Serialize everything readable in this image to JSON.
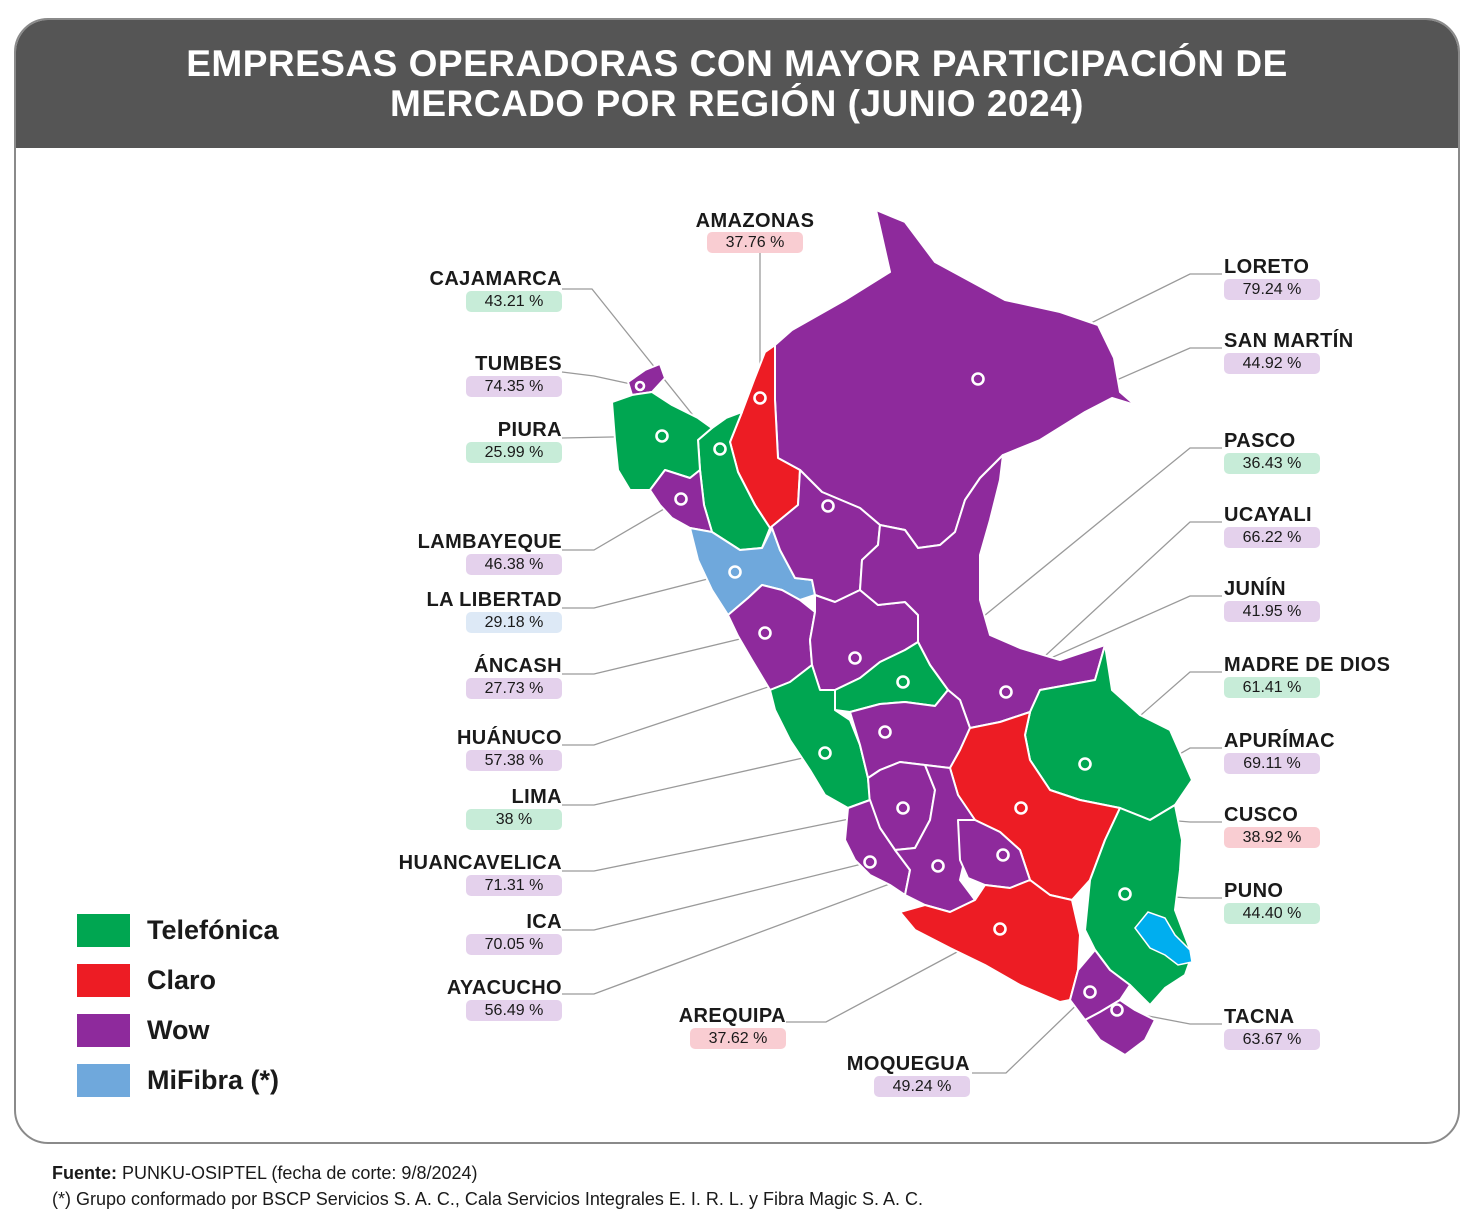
{
  "title": {
    "line1": "EMPRESAS OPERADORAS CON MAYOR PARTICIPACIÓN DE",
    "line2": "MERCADO POR REGIÓN (JUNIO 2024)"
  },
  "colors": {
    "telefonica": "#00a651",
    "claro": "#ed1c24",
    "wow": "#8e2a9c",
    "mifibra": "#6fa8dc",
    "lake": "#00aeef",
    "header": "#555555"
  },
  "legend": [
    {
      "label": "Telefónica",
      "color_key": "telefonica"
    },
    {
      "label": "Claro",
      "color_key": "claro"
    },
    {
      "label": "Wow",
      "color_key": "wow"
    },
    {
      "label": "MiFibra (*)",
      "color_key": "mifibra"
    }
  ],
  "regions": {
    "amazonas": {
      "name": "AMAZONAS",
      "value": "37.76 %",
      "operator": "claro"
    },
    "cajamarca": {
      "name": "CAJAMARCA",
      "value": "43.21 %",
      "operator": "telefonica"
    },
    "tumbes": {
      "name": "TUMBES",
      "value": "74.35 %",
      "operator": "wow"
    },
    "piura": {
      "name": "PIURA",
      "value": "25.99 %",
      "operator": "telefonica"
    },
    "lambayeque": {
      "name": "LAMBAYEQUE",
      "value": "46.38 %",
      "operator": "wow"
    },
    "lalibertad": {
      "name": "LA LIBERTAD",
      "value": "29.18 %",
      "operator": "mifibra"
    },
    "ancash": {
      "name": "ÁNCASH",
      "value": "27.73 %",
      "operator": "wow"
    },
    "huanuco": {
      "name": "HUÁNUCO",
      "value": "57.38 %",
      "operator": "wow"
    },
    "lima": {
      "name": "LIMA",
      "value": "38 %",
      "operator": "telefonica"
    },
    "huancavelica": {
      "name": "HUANCAVELICA",
      "value": "71.31 %",
      "operator": "wow"
    },
    "ica": {
      "name": "ICA",
      "value": "70.05 %",
      "operator": "wow"
    },
    "ayacucho": {
      "name": "AYACUCHO",
      "value": "56.49 %",
      "operator": "wow"
    },
    "arequipa": {
      "name": "AREQUIPA",
      "value": "37.62 %",
      "operator": "claro"
    },
    "moquegua": {
      "name": "MOQUEGUA",
      "value": "49.24 %",
      "operator": "wow"
    },
    "tacna": {
      "name": "TACNA",
      "value": "63.67 %",
      "operator": "wow"
    },
    "puno": {
      "name": "PUNO",
      "value": "44.40 %",
      "operator": "telefonica"
    },
    "cusco": {
      "name": "CUSCO",
      "value": "38.92 %",
      "operator": "claro"
    },
    "apurimac": {
      "name": "APURÍMAC",
      "value": "69.11 %",
      "operator": "wow"
    },
    "madrededios": {
      "name": "MADRE DE DIOS",
      "value": "61.41 %",
      "operator": "telefonica"
    },
    "junin": {
      "name": "JUNÍN",
      "value": "41.95 %",
      "operator": "wow"
    },
    "ucayali": {
      "name": "UCAYALI",
      "value": "66.22 %",
      "operator": "wow"
    },
    "pasco": {
      "name": "PASCO",
      "value": "36.43 %",
      "operator": "telefonica"
    },
    "sanmartin": {
      "name": "SAN MARTÍN",
      "value": "44.92 %",
      "operator": "wow"
    },
    "loreto": {
      "name": "LORETO",
      "value": "79.24 %",
      "operator": "wow"
    }
  },
  "source": {
    "label": "Fuente:",
    "text": " PUNKU-OSIPTEL (fecha de corte: 9/8/2024)",
    "note": "(*) Grupo conformado por BSCP Servicios S. A. C., Cala Servicios Integrales E. I. R. L. y Fibra Magic S. A. C."
  }
}
